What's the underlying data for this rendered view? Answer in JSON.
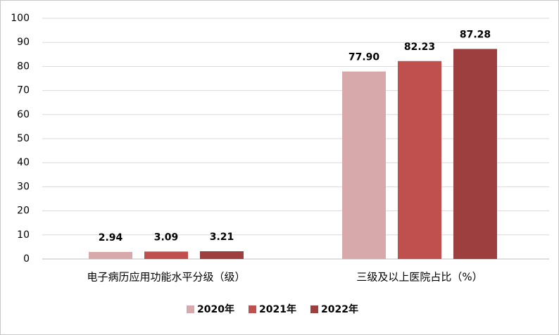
{
  "chart_data": {
    "type": "bar",
    "categories": [
      "电子病历应用功能水平分级（级）",
      "三级及以上医院占比（%）"
    ],
    "series": [
      {
        "name": "2020年",
        "color": "#d8a9aa",
        "values": [
          2.94,
          77.9
        ],
        "value_labels": [
          "2.94",
          "77.90"
        ]
      },
      {
        "name": "2021年",
        "color": "#c0504d",
        "values": [
          3.09,
          82.23
        ],
        "value_labels": [
          "3.09",
          "82.23"
        ]
      },
      {
        "name": "2022年",
        "color": "#9d3f3e",
        "values": [
          3.21,
          87.28
        ],
        "value_labels": [
          "3.21",
          "87.28"
        ]
      }
    ],
    "ylim": [
      0,
      100
    ],
    "yticks": [
      0,
      10,
      20,
      30,
      40,
      50,
      60,
      70,
      80,
      90,
      100
    ],
    "grid": true,
    "legend": "bottom"
  }
}
